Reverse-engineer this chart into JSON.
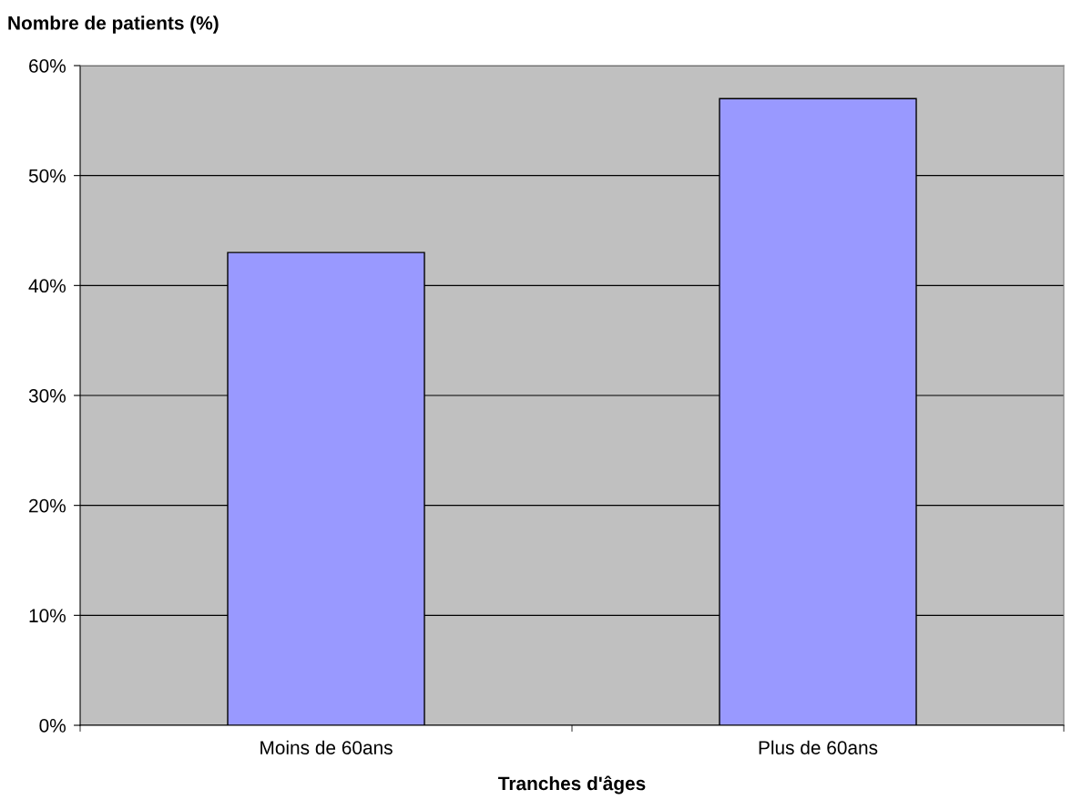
{
  "chart_data": {
    "type": "bar",
    "xlabel": "Tranches d'âges",
    "ylabel": "Nombre de patients (%)",
    "categories": [
      "Moins de 60ans",
      "Plus de 60ans"
    ],
    "values": [
      43,
      57
    ],
    "color": "#9999ff",
    "ylim": [
      0,
      60
    ],
    "yticks": [
      {
        "value": 0,
        "label": "0%"
      },
      {
        "value": 10,
        "label": "10%"
      },
      {
        "value": 20,
        "label": "20%"
      },
      {
        "value": 30,
        "label": "30%"
      },
      {
        "value": 40,
        "label": "40%"
      },
      {
        "value": 50,
        "label": "50%"
      },
      {
        "value": 60,
        "label": "60%"
      }
    ],
    "grid": "y"
  }
}
